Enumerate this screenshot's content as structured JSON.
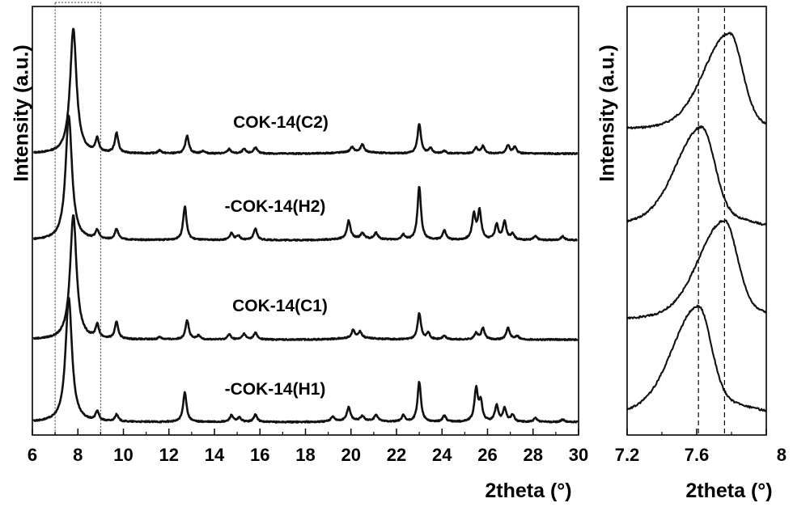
{
  "chart_data": [
    {
      "type": "line",
      "panel": "left",
      "xlabel": "2theta (°)",
      "ylabel": "Intensity (a.u.)",
      "xlim": [
        6,
        30
      ],
      "xticks": [
        6,
        8,
        10,
        12,
        14,
        16,
        18,
        20,
        22,
        24,
        26,
        28,
        30
      ],
      "y_ticks_labeled": false,
      "highlight_box_x": [
        7,
        9
      ],
      "series": [
        {
          "name": "COK-14(C2)",
          "peaks": [
            [
              7.8,
              10
            ],
            [
              8.85,
              1.1
            ],
            [
              9.7,
              1.6
            ],
            [
              11.6,
              0.25
            ],
            [
              12.8,
              1.45
            ],
            [
              13.5,
              0.2
            ],
            [
              14.65,
              0.35
            ],
            [
              15.3,
              0.35
            ],
            [
              15.8,
              0.5
            ],
            [
              20.05,
              0.4
            ],
            [
              20.5,
              0.6
            ],
            [
              23.0,
              2.4
            ],
            [
              23.5,
              0.4
            ],
            [
              24.1,
              0.2
            ],
            [
              25.5,
              0.45
            ],
            [
              25.8,
              0.6
            ],
            [
              26.9,
              0.65
            ],
            [
              27.2,
              0.5
            ]
          ]
        },
        {
          "name": "-COK-14(H2)",
          "peaks": [
            [
              7.6,
              10
            ],
            [
              8.85,
              0.7
            ],
            [
              9.7,
              0.85
            ],
            [
              12.7,
              2.7
            ],
            [
              14.75,
              0.55
            ],
            [
              15.05,
              0.35
            ],
            [
              15.8,
              0.9
            ],
            [
              19.9,
              1.45
            ],
            [
              20.5,
              0.45
            ],
            [
              21.1,
              0.5
            ],
            [
              22.3,
              0.4
            ],
            [
              23.0,
              4.3
            ],
            [
              24.1,
              0.75
            ],
            [
              25.4,
              2.0
            ],
            [
              25.65,
              2.3
            ],
            [
              26.4,
              1.2
            ],
            [
              26.75,
              1.45
            ],
            [
              27.1,
              0.5
            ],
            [
              28.1,
              0.3
            ],
            [
              29.3,
              0.3
            ]
          ]
        },
        {
          "name": "COK-14(C1)",
          "peaks": [
            [
              7.8,
              10
            ],
            [
              8.85,
              1.05
            ],
            [
              9.7,
              1.35
            ],
            [
              11.6,
              0.2
            ],
            [
              12.8,
              1.55
            ],
            [
              13.3,
              0.3
            ],
            [
              14.65,
              0.4
            ],
            [
              15.3,
              0.45
            ],
            [
              15.8,
              0.55
            ],
            [
              20.1,
              0.65
            ],
            [
              20.4,
              0.5
            ],
            [
              23.0,
              2.1
            ],
            [
              23.4,
              0.5
            ],
            [
              24.1,
              0.3
            ],
            [
              25.5,
              0.5
            ],
            [
              25.8,
              0.9
            ],
            [
              26.9,
              0.95
            ],
            [
              27.3,
              0.3
            ]
          ]
        },
        {
          "name": "-COK-14(H1)",
          "peaks": [
            [
              7.6,
              10
            ],
            [
              8.85,
              0.75
            ],
            [
              9.7,
              0.55
            ],
            [
              12.7,
              2.4
            ],
            [
              14.75,
              0.55
            ],
            [
              15.1,
              0.35
            ],
            [
              15.8,
              0.6
            ],
            [
              19.2,
              0.4
            ],
            [
              19.9,
              1.1
            ],
            [
              20.5,
              0.35
            ],
            [
              21.1,
              0.5
            ],
            [
              22.3,
              0.5
            ],
            [
              23.0,
              3.2
            ],
            [
              24.1,
              0.5
            ],
            [
              25.5,
              2.6
            ],
            [
              25.7,
              1.5
            ],
            [
              26.4,
              1.3
            ],
            [
              26.75,
              1.05
            ],
            [
              27.1,
              0.55
            ],
            [
              28.1,
              0.3
            ],
            [
              29.3,
              0.2
            ]
          ]
        }
      ]
    },
    {
      "type": "line",
      "panel": "right",
      "xlabel": "2theta (°)",
      "ylabel": "Intensity (a.u.)",
      "xlim": [
        7.2,
        8.0
      ],
      "xticks": [
        7.2,
        7.6,
        8.0
      ],
      "y_ticks_labeled": false,
      "reference_lines_x": [
        7.61,
        7.76
      ],
      "series_order_top_to_bottom": [
        "COK-14(C2)",
        "-COK-14(H2)",
        "COK-14(C1)",
        "-COK-14(H1)"
      ],
      "peak_positions": [
        7.79,
        7.63,
        7.76,
        7.61
      ]
    }
  ]
}
